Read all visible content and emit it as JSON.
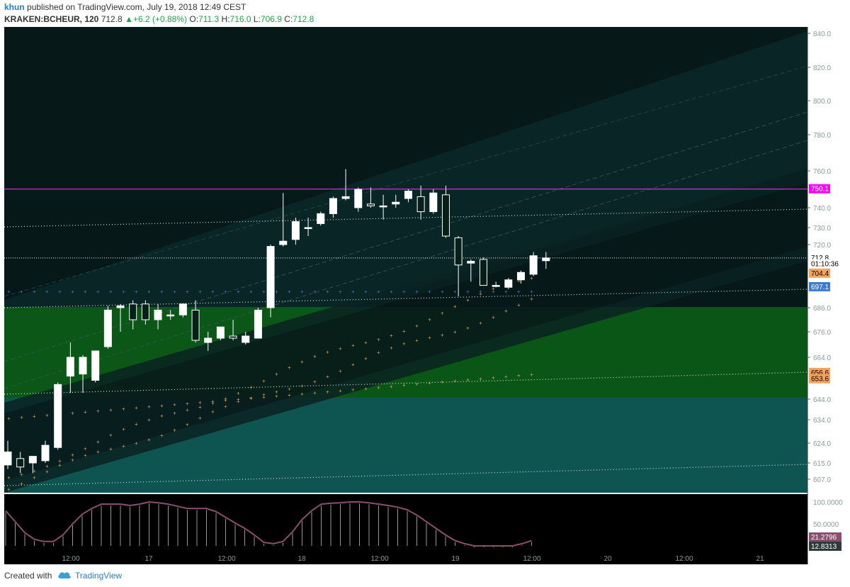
{
  "header": {
    "author": "khun",
    "published": "published on TradingView.com, July 19, 2018 12:49 CEST",
    "symbol": "KRAKEN:BCHEUR, 120",
    "last": "712.8",
    "change": "+6.2 (+0.88%)",
    "open_label": "O:",
    "open": "711.3",
    "high_label": "H:",
    "high": "716.0",
    "low_label": "L:",
    "low": "706.9",
    "close_label": "C:",
    "close": "712.8"
  },
  "footer": {
    "created_with": "Created with",
    "brand": "TradingView"
  },
  "colors": {
    "background": "#061818",
    "axis_text": "#8a9a9a",
    "candle_up": "#ffffff",
    "candle_down": "#062018",
    "accent_magenta": "#ff00ff",
    "accent_orange": "#f7a35c",
    "accent_blue": "#3b7bd6",
    "stoch": "#8a4f6e"
  },
  "chart_data": {
    "type": "candlestick",
    "title": "",
    "price_axis": {
      "ticks": [
        {
          "v": 607,
          "label": "607.0"
        },
        {
          "v": 615,
          "label": "615.0"
        },
        {
          "v": 624,
          "label": "624.0"
        },
        {
          "v": 634,
          "label": "634.0"
        },
        {
          "v": 644,
          "label": "644.0"
        },
        {
          "v": 664,
          "label": "664.0"
        },
        {
          "v": 676,
          "label": "676.0"
        },
        {
          "v": 686,
          "label": "686.0"
        },
        {
          "v": 720,
          "label": "720.0"
        },
        {
          "v": 730,
          "label": "730.0"
        },
        {
          "v": 740,
          "label": "740.0"
        },
        {
          "v": 760,
          "label": "760.0"
        },
        {
          "v": 780,
          "label": "780.0"
        },
        {
          "v": 800,
          "label": "800.0"
        },
        {
          "v": 820,
          "label": "820.0"
        },
        {
          "v": 840,
          "label": "840.0"
        }
      ]
    },
    "time_axis": [
      "12:00",
      "17",
      "12:00",
      "18",
      "12:00",
      "19",
      "12:00",
      "20",
      "12:00",
      "21"
    ],
    "price_badges": [
      {
        "value": "750.1",
        "v": 750.1,
        "color": "#ff00ff",
        "text_color": "#ffffff"
      },
      {
        "value": "712.8",
        "v": 712.8,
        "color": "#ffffff",
        "text_color": "#000000"
      },
      {
        "value": "01:10:36",
        "v": 709.4,
        "color": "#ffffff",
        "text_color": "#000000"
      },
      {
        "value": "704.4",
        "v": 704.4,
        "color": "#f7a35c",
        "text_color": "#000000"
      },
      {
        "value": "697.1",
        "v": 697.1,
        "color": "#3b7bd6",
        "text_color": "#ffffff"
      },
      {
        "value": "656.6",
        "v": 656.6,
        "color": "#f7a35c",
        "text_color": "#000000"
      },
      {
        "value": "653.6",
        "v": 653.6,
        "color": "#f7a35c",
        "text_color": "#000000"
      }
    ],
    "candles": [
      {
        "o": 614,
        "h": 625,
        "l": 612,
        "c": 620
      },
      {
        "o": 617,
        "h": 620,
        "l": 610,
        "c": 613
      },
      {
        "o": 615,
        "h": 618,
        "l": 610,
        "c": 618
      },
      {
        "o": 616,
        "h": 625,
        "l": 615,
        "c": 623
      },
      {
        "o": 622,
        "h": 652,
        "l": 621,
        "c": 651
      },
      {
        "o": 655,
        "h": 671,
        "l": 647,
        "c": 664
      },
      {
        "o": 656,
        "h": 665,
        "l": 647,
        "c": 664
      },
      {
        "o": 653,
        "h": 667,
        "l": 652,
        "c": 667
      },
      {
        "o": 669,
        "h": 687,
        "l": 668,
        "c": 685
      },
      {
        "o": 686,
        "h": 688,
        "l": 676,
        "c": 687
      },
      {
        "o": 688,
        "h": 690,
        "l": 677,
        "c": 681
      },
      {
        "o": 688,
        "h": 690,
        "l": 679,
        "c": 681
      },
      {
        "o": 681,
        "h": 688,
        "l": 677,
        "c": 685
      },
      {
        "o": 683,
        "h": 685,
        "l": 681,
        "c": 683
      },
      {
        "o": 683,
        "h": 688,
        "l": 682,
        "c": 688
      },
      {
        "o": 685,
        "h": 690,
        "l": 671,
        "c": 672
      },
      {
        "o": 671,
        "h": 676,
        "l": 667,
        "c": 673
      },
      {
        "o": 673,
        "h": 678,
        "l": 672,
        "c": 678
      },
      {
        "o": 674,
        "h": 681,
        "l": 672,
        "c": 673
      },
      {
        "o": 671,
        "h": 676,
        "l": 670,
        "c": 674
      },
      {
        "o": 673,
        "h": 686,
        "l": 673,
        "c": 685
      },
      {
        "o": 686,
        "h": 720,
        "l": 682,
        "c": 719
      },
      {
        "o": 720,
        "h": 748,
        "l": 719,
        "c": 722
      },
      {
        "o": 723,
        "h": 735,
        "l": 720,
        "c": 733
      },
      {
        "o": 730,
        "h": 735,
        "l": 725,
        "c": 730
      },
      {
        "o": 732,
        "h": 738,
        "l": 731,
        "c": 737
      },
      {
        "o": 737,
        "h": 746,
        "l": 735,
        "c": 745
      },
      {
        "o": 745,
        "h": 761,
        "l": 744,
        "c": 746
      },
      {
        "o": 740,
        "h": 751,
        "l": 738,
        "c": 750
      },
      {
        "o": 742,
        "h": 751,
        "l": 740,
        "c": 741
      },
      {
        "o": 741,
        "h": 747,
        "l": 734,
        "c": 741
      },
      {
        "o": 742,
        "h": 747,
        "l": 740,
        "c": 743
      },
      {
        "o": 745,
        "h": 750,
        "l": 743,
        "c": 749
      },
      {
        "o": 746,
        "h": 752,
        "l": 734,
        "c": 738
      },
      {
        "o": 738,
        "h": 750,
        "l": 737,
        "c": 748
      },
      {
        "o": 747,
        "h": 752,
        "l": 724,
        "c": 725
      },
      {
        "o": 724,
        "h": 725,
        "l": 692,
        "c": 709
      },
      {
        "o": 710,
        "h": 712,
        "l": 700,
        "c": 711
      },
      {
        "o": 712,
        "h": 713,
        "l": 698,
        "c": 698
      },
      {
        "o": 698,
        "h": 700,
        "l": 697,
        "c": 698
      },
      {
        "o": 697,
        "h": 702,
        "l": 696,
        "c": 701
      },
      {
        "o": 701,
        "h": 706,
        "l": 699,
        "c": 705
      },
      {
        "o": 704,
        "h": 716,
        "l": 703,
        "c": 714
      },
      {
        "o": 711.3,
        "h": 716,
        "l": 706.9,
        "c": 712.8
      }
    ],
    "stochastic": {
      "ticks": [
        {
          "v": 100,
          "label": "100.0000"
        },
        {
          "v": 50,
          "label": "50.0000"
        }
      ],
      "values": [
        80,
        55,
        30,
        15,
        10,
        10,
        25,
        50,
        72,
        85,
        95,
        95,
        95,
        92,
        95,
        100,
        98,
        95,
        90,
        85,
        85,
        85,
        78,
        65,
        52,
        40,
        25,
        8,
        5,
        10,
        32,
        60,
        80,
        95,
        97,
        98,
        100,
        100,
        98,
        95,
        92,
        88,
        82,
        70,
        55,
        40,
        25,
        12,
        5,
        0,
        0,
        0,
        0,
        0,
        5,
        12
      ],
      "badges": [
        {
          "value": "21.2796",
          "color": "#8a4f6e"
        },
        {
          "value": "12.8313",
          "color": "#2e3b3b"
        }
      ]
    }
  }
}
